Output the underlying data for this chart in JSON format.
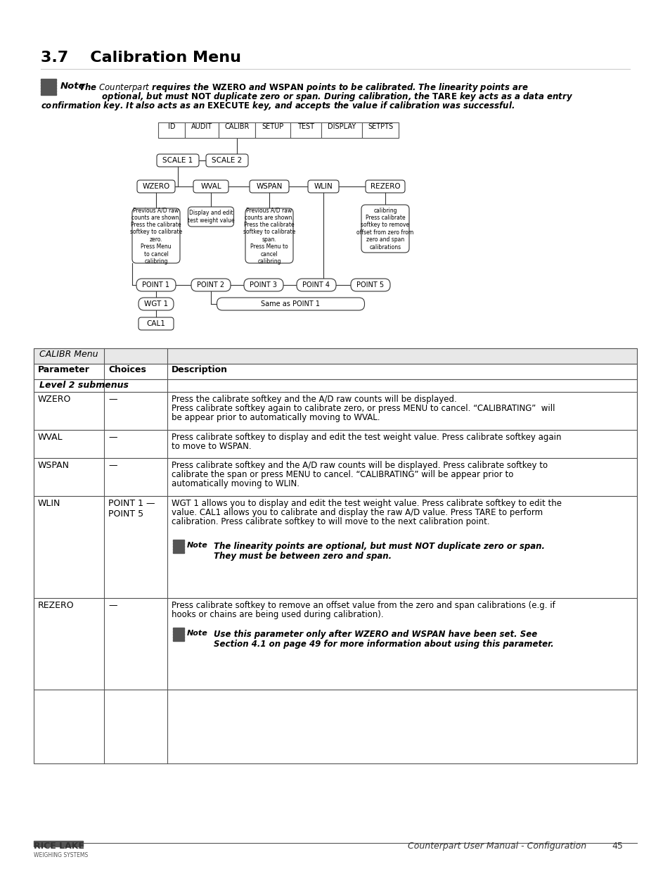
{
  "title": "3.7    Calibration Menu",
  "note_text": "The Counterpart requires the WZERO and WSPAN points to be calibrated. The linearity points are\n        optional, but must NOT duplicate zero or span. During calibration, the TARE key acts as a data entry\nconfirmation key. It also acts as an EXECUTE key, and accepts the value if calibration was successful.",
  "table_header": "CALIBR Menu",
  "table_cols": [
    "Parameter",
    "Choices",
    "Description"
  ],
  "table_rows": [
    {
      "param": "Level 2 submenus",
      "choices": "",
      "desc": "",
      "is_subheader": true
    },
    {
      "param": "WZERO",
      "choices": "—",
      "desc": "Press the calibrate softkey and the A/D raw counts will be displayed.\nPress calibrate softkey again to calibrate zero, or press MENU to cancel. “CALIBRATING”  will\nbe appear prior to automatically moving to WVAL.",
      "is_subheader": false
    },
    {
      "param": "WVAL",
      "choices": "—",
      "desc": "Press calibrate softkey to display and edit the test weight value. Press calibrate softkey again\nto move to WSPAN.",
      "is_subheader": false
    },
    {
      "param": "WSPAN",
      "choices": "—",
      "desc": "Press calibrate softkey and the A/D raw counts will be displayed. Press calibrate softkey to\ncalibrate the span or press MENU to cancel. “CALIBRATING” will be appear prior to\nautomatically moving to WLIN.",
      "is_subheader": false
    },
    {
      "param": "WLIN",
      "choices": "POINT 1 —\nPOINT 5",
      "desc": "WGT 1 allows you to display and edit the test weight value. Press calibrate softkey to edit the\nvalue. CAL1 allows you to calibrate and display the raw A/D value. Press TARE to perform\ncalibration. Press calibrate softkey to will move to the next calibration point.\n\nNOTE_WLIN",
      "is_subheader": false
    },
    {
      "param": "REZERO",
      "choices": "—",
      "desc": "Press calibrate softkey to remove an offset value from the zero and span calibrations (e.g. if\nhooks or chains are being used during calibration).\n\nNOTE_REZERO",
      "is_subheader": false
    }
  ],
  "note_wlin": "The linearity points are optional, but must NOT duplicate zero or span.\nThey must be between zero and span.",
  "note_rezero": "Use this parameter only after WZERO and WSPAN have been set. See\nSection 4.1 on page 49 for more information about using this parameter.",
  "footer_text": "Counterpart User Manual - Configuration",
  "footer_page": "45",
  "bg_color": "#ffffff"
}
